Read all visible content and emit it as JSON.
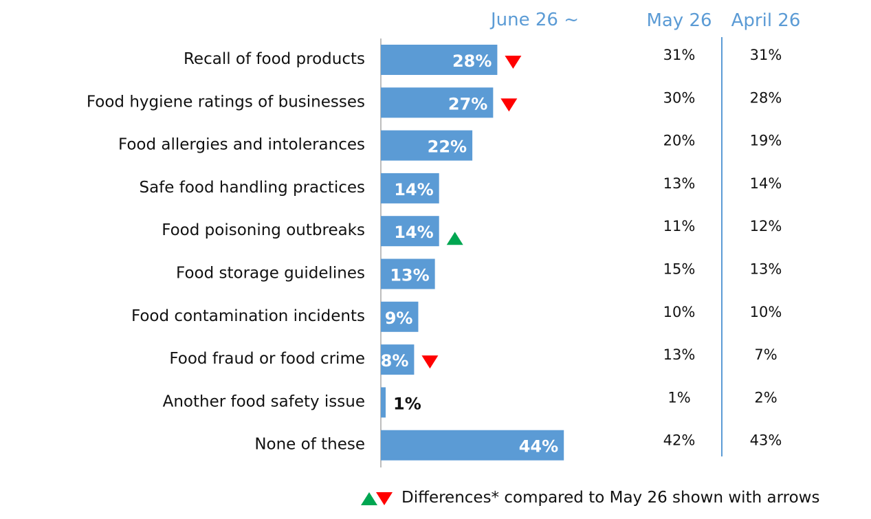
{
  "chart_data": {
    "type": "bar",
    "orientation": "horizontal",
    "categories": [
      "Recall of food products",
      "Food hygiene ratings of businesses",
      "Food allergies and intolerances",
      "Safe food handling practices",
      "Food poisoning outbreaks",
      "Food storage guidelines",
      "Food contamination incidents",
      "Food fraud or food crime",
      "Another food safety issue",
      "None of these"
    ],
    "series": [
      {
        "name": "June 26 ~",
        "values": [
          28,
          27,
          22,
          14,
          14,
          13,
          9,
          8,
          1,
          44
        ],
        "color": "#5b9bd5"
      }
    ],
    "value_labels": [
      "28%",
      "27%",
      "22%",
      "14%",
      "14%",
      "13%",
      "9%",
      "8%",
      "1%",
      "44%"
    ],
    "comparison_columns": [
      {
        "header": "May 26",
        "values": [
          "31%",
          "30%",
          "20%",
          "13%",
          "11%",
          "15%",
          "10%",
          "13%",
          "1%",
          "42%"
        ]
      },
      {
        "header": "April 26",
        "values": [
          "31%",
          "28%",
          "19%",
          "14%",
          "12%",
          "13%",
          "10%",
          "7%",
          "2%",
          "43%"
        ]
      }
    ],
    "arrows": [
      "down",
      "down",
      "",
      "",
      "up",
      "",
      "",
      "down",
      "",
      ""
    ],
    "arrow_colors": {
      "up": "#00a651",
      "down": "#ff0000"
    },
    "legend_text": "Differences* compared to May 26 shown with arrows",
    "header_color": "#5b9bd5",
    "grid": false
  }
}
